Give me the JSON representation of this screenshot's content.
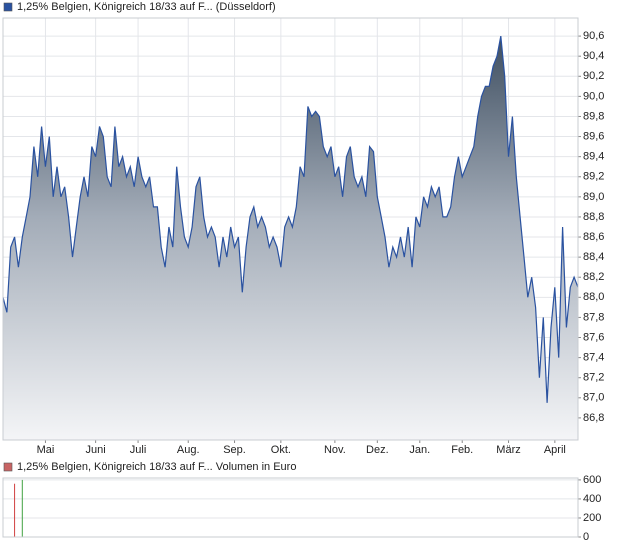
{
  "chart_data": [
    {
      "type": "area",
      "series": [
        {
          "name": "1,25% Belgien, Königreich 18/33 auf F... (Düsseldorf)",
          "color": "#2a52a0",
          "values": [
            88.0,
            87.85,
            88.5,
            88.6,
            88.3,
            88.6,
            88.8,
            89.0,
            89.5,
            89.2,
            89.7,
            89.3,
            89.6,
            89.0,
            89.3,
            89.0,
            89.1,
            88.8,
            88.4,
            88.7,
            89.0,
            89.2,
            89.0,
            89.5,
            89.4,
            89.7,
            89.6,
            89.2,
            89.1,
            89.7,
            89.3,
            89.4,
            89.2,
            89.3,
            89.1,
            89.4,
            89.2,
            89.1,
            89.2,
            88.9,
            88.9,
            88.5,
            88.3,
            88.7,
            88.5,
            89.3,
            88.9,
            88.6,
            88.5,
            88.7,
            89.1,
            89.2,
            88.8,
            88.6,
            88.7,
            88.6,
            88.3,
            88.6,
            88.4,
            88.7,
            88.5,
            88.6,
            88.05,
            88.5,
            88.8,
            88.9,
            88.7,
            88.8,
            88.7,
            88.5,
            88.6,
            88.5,
            88.3,
            88.7,
            88.8,
            88.7,
            88.9,
            89.3,
            89.2,
            89.9,
            89.8,
            89.85,
            89.8,
            89.5,
            89.4,
            89.5,
            89.2,
            89.3,
            89.0,
            89.4,
            89.5,
            89.2,
            89.1,
            89.2,
            89.0,
            89.5,
            89.45,
            89.0,
            88.8,
            88.6,
            88.3,
            88.5,
            88.4,
            88.6,
            88.4,
            88.7,
            88.3,
            88.8,
            88.7,
            89.0,
            88.9,
            89.1,
            89.0,
            89.1,
            88.8,
            88.8,
            88.9,
            89.2,
            89.4,
            89.2,
            89.3,
            89.4,
            89.5,
            89.8,
            90.0,
            90.1,
            90.1,
            90.3,
            90.4,
            90.6,
            90.2,
            89.4,
            89.8,
            89.2,
            88.8,
            88.4,
            88.0,
            88.2,
            87.9,
            87.2,
            87.8,
            86.95,
            87.7,
            88.1,
            87.4,
            88.7,
            87.7,
            88.1,
            88.2,
            88.1
          ]
        }
      ],
      "xlim": [
        0,
        149
      ],
      "xticks": [
        {
          "value": 11,
          "label": "Mai"
        },
        {
          "value": 24,
          "label": "Juni"
        },
        {
          "value": 35,
          "label": "Juli"
        },
        {
          "value": 48,
          "label": "Aug."
        },
        {
          "value": 60,
          "label": "Sep."
        },
        {
          "value": 72,
          "label": "Okt."
        },
        {
          "value": 86,
          "label": "Nov."
        },
        {
          "value": 97,
          "label": "Dez."
        },
        {
          "value": 108,
          "label": "Jan."
        },
        {
          "value": 119,
          "label": "Feb."
        },
        {
          "value": 131,
          "label": "März"
        },
        {
          "value": 143,
          "label": "April"
        }
      ],
      "ylim": [
        86.58,
        90.78
      ],
      "yticks": [
        {
          "value": 86.8,
          "label": "86,8"
        },
        {
          "value": 87.0,
          "label": "87,0"
        },
        {
          "value": 87.2,
          "label": "87,2"
        },
        {
          "value": 87.4,
          "label": "87,4"
        },
        {
          "value": 87.6,
          "label": "87,6"
        },
        {
          "value": 87.8,
          "label": "87,8"
        },
        {
          "value": 88.0,
          "label": "88,0"
        },
        {
          "value": 88.2,
          "label": "88,2"
        },
        {
          "value": 88.4,
          "label": "88,4"
        },
        {
          "value": 88.6,
          "label": "88,6"
        },
        {
          "value": 88.8,
          "label": "88,8"
        },
        {
          "value": 89.0,
          "label": "89,0"
        },
        {
          "value": 89.2,
          "label": "89,2"
        },
        {
          "value": 89.4,
          "label": "89,4"
        },
        {
          "value": 89.6,
          "label": "89,6"
        },
        {
          "value": 89.8,
          "label": "89,8"
        },
        {
          "value": 90.0,
          "label": "90,0"
        },
        {
          "value": 90.2,
          "label": "90,2"
        },
        {
          "value": 90.4,
          "label": "90,4"
        },
        {
          "value": 90.6,
          "label": "90,6"
        }
      ],
      "grid": true
    },
    {
      "type": "bar",
      "series": [
        {
          "name": "1,25% Belgien, Königreich 18/33 auf F... Volumen in Euro",
          "color": "#c86464",
          "x": [
            3,
            5
          ],
          "values": [
            560,
            600
          ],
          "colors": [
            "#d04040",
            "#40a040"
          ]
        }
      ],
      "xlim": [
        0,
        149
      ],
      "ylim": [
        0,
        620
      ],
      "yticks": [
        0,
        200,
        400,
        600
      ],
      "grid": true
    }
  ]
}
